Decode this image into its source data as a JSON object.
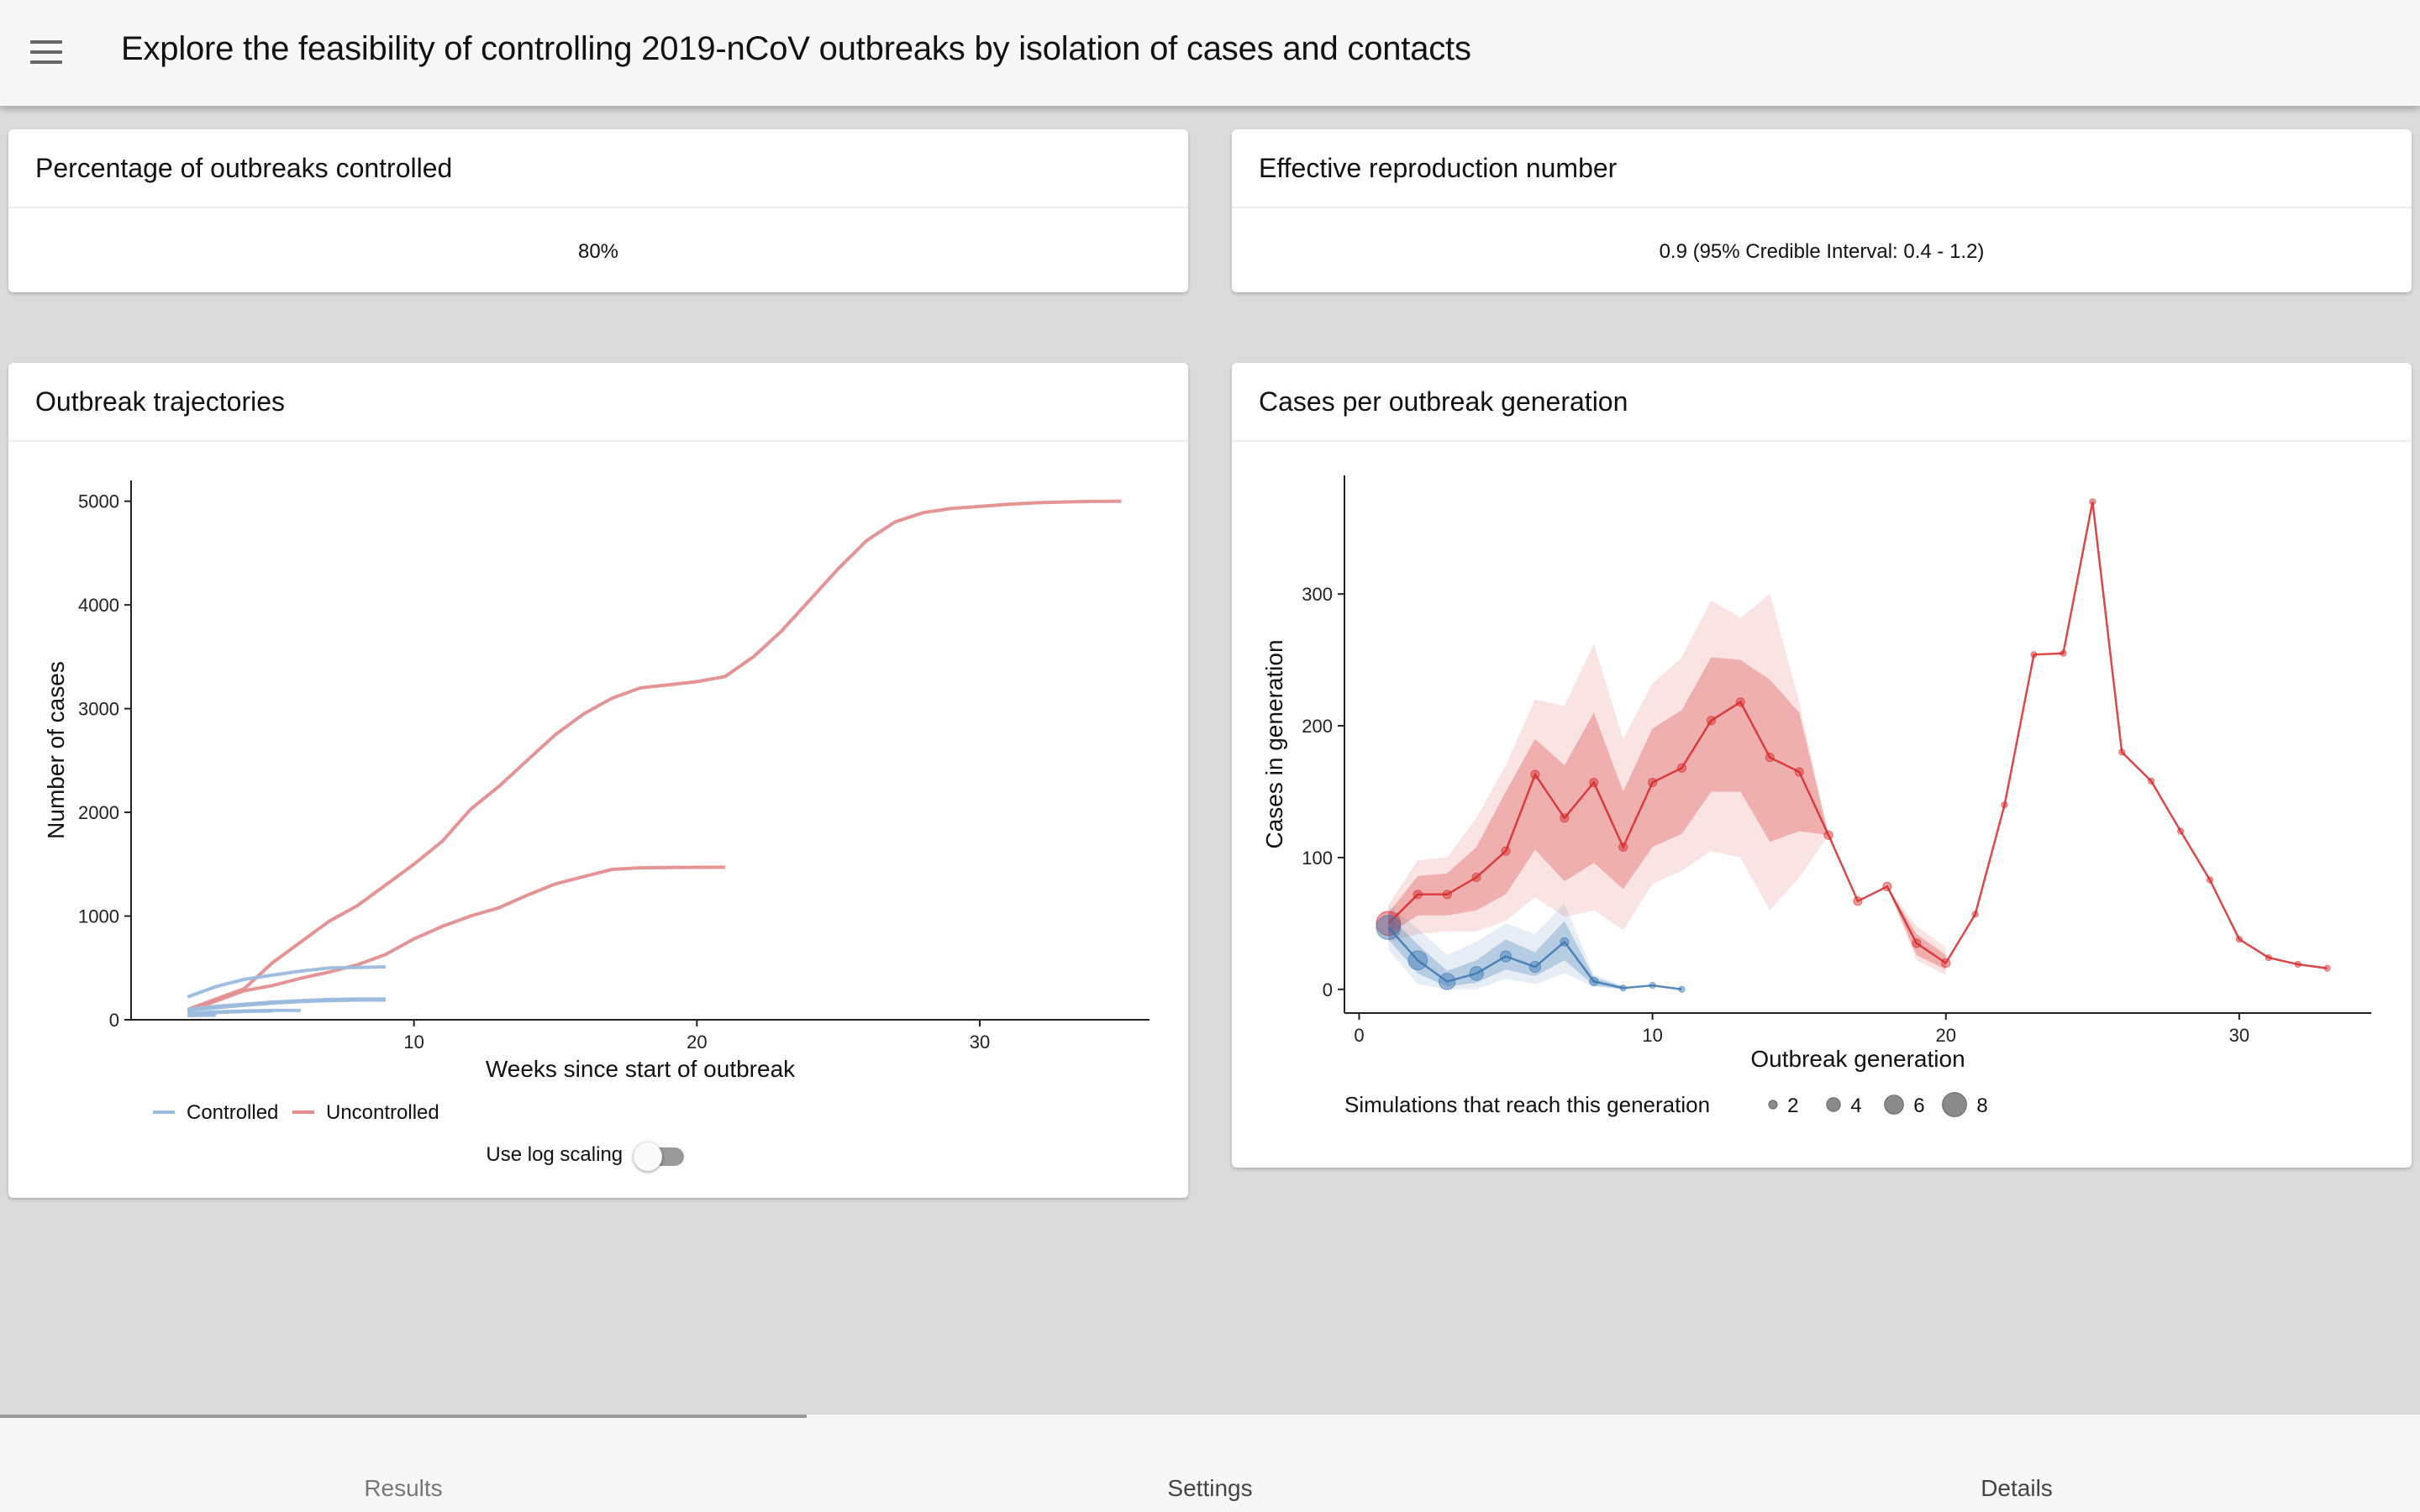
{
  "app": {
    "title": "Explore the feasibility of controlling 2019-nCoV outbreaks by isolation of cases and contacts",
    "menu_icon": "hamburger-menu-icon"
  },
  "cards": {
    "controlled": {
      "title": "Percentage of outbreaks controlled",
      "value": "80%"
    },
    "reproduction": {
      "title": "Effective reproduction number",
      "value": "0.9 (95% Credible Interval: 0.4 - 1.2)"
    },
    "trajectories": {
      "title": "Outbreak trajectories",
      "toggle_label": "Use log scaling",
      "toggle_on": false
    },
    "generation": {
      "title": "Cases per outbreak generation"
    }
  },
  "colors": {
    "controlled": "#6e9bc8",
    "uncontrolled": "#e27c7c",
    "gen_red": "#d62728",
    "gen_blue": "#3a76b2"
  },
  "chart_data": [
    {
      "type": "line",
      "name": "outbreak-trajectories",
      "xlabel": "Weeks since start of outbreak",
      "ylabel": "Number of cases",
      "xlim": [
        0,
        36
      ],
      "ylim": [
        0,
        5200
      ],
      "xticks": [
        10,
        20,
        30
      ],
      "yticks": [
        0,
        1000,
        2000,
        3000,
        4000,
        5000
      ],
      "legend": [
        {
          "label": "Controlled",
          "color": "#9bbbdd"
        },
        {
          "label": "Uncontrolled",
          "color": "#e38e8e"
        }
      ],
      "series": [
        {
          "name": "Uncontrolled",
          "group": "uncontrolled",
          "x": [
            2,
            4,
            5,
            6,
            7,
            8,
            9,
            10,
            11,
            12,
            13,
            14,
            15,
            16,
            17,
            18,
            19,
            20,
            21,
            22,
            23,
            24,
            25,
            26,
            27,
            28,
            29,
            30,
            31,
            32,
            33,
            34,
            35
          ],
          "y": [
            100,
            300,
            550,
            750,
            950,
            1100,
            1300,
            1500,
            1720,
            2030,
            2250,
            2500,
            2750,
            2950,
            3100,
            3200,
            3230,
            3260,
            3310,
            3500,
            3750,
            4050,
            4350,
            4620,
            4800,
            4890,
            4930,
            4950,
            4970,
            4985,
            4993,
            4998,
            5000
          ]
        },
        {
          "name": "Uncontrolled",
          "group": "uncontrolled",
          "x": [
            2,
            3,
            4,
            5,
            6,
            7,
            8,
            9,
            10,
            11,
            12,
            13,
            14,
            15,
            16,
            17,
            18,
            19,
            20,
            21
          ],
          "y": [
            80,
            180,
            280,
            330,
            400,
            460,
            530,
            630,
            780,
            900,
            1000,
            1080,
            1200,
            1310,
            1380,
            1450,
            1465,
            1468,
            1470,
            1470
          ]
        },
        {
          "name": "Controlled",
          "group": "controlled",
          "x": [
            2,
            3,
            4,
            5,
            6,
            7,
            8,
            9
          ],
          "y": [
            220,
            320,
            390,
            430,
            470,
            500,
            505,
            510
          ]
        },
        {
          "name": "Controlled",
          "group": "controlled",
          "x": [
            2,
            3,
            4,
            5,
            6,
            7,
            8,
            9
          ],
          "y": [
            100,
            130,
            150,
            170,
            185,
            195,
            200,
            200
          ]
        },
        {
          "name": "Controlled",
          "group": "controlled",
          "x": [
            2,
            3,
            4,
            5,
            6,
            7,
            8,
            9
          ],
          "y": [
            90,
            115,
            140,
            160,
            175,
            185,
            190,
            190
          ]
        },
        {
          "name": "Controlled",
          "group": "controlled",
          "x": [
            2,
            3,
            4,
            5,
            6
          ],
          "y": [
            60,
            75,
            85,
            90,
            90
          ]
        },
        {
          "name": "Controlled",
          "group": "controlled",
          "x": [
            2,
            3,
            4,
            5
          ],
          "y": [
            55,
            70,
            80,
            85
          ]
        },
        {
          "name": "Controlled",
          "group": "controlled",
          "x": [
            2,
            3
          ],
          "y": [
            40,
            45
          ]
        }
      ]
    },
    {
      "type": "line",
      "name": "cases-per-generation",
      "xlabel": "Outbreak generation",
      "ylabel": "Cases in generation",
      "xlim": [
        -0.5,
        34.5
      ],
      "ylim": [
        -18,
        390
      ],
      "xticks": [
        0,
        10,
        20,
        30
      ],
      "yticks": [
        0,
        100,
        200,
        300
      ],
      "size_legend": {
        "title": "Simulations that reach this generation",
        "values": [
          2,
          4,
          6,
          8
        ]
      },
      "series": [
        {
          "name": "Uncontrolled",
          "color": "#d62728",
          "x": [
            1,
            2,
            3,
            4,
            5,
            6,
            7,
            8,
            9,
            10,
            11,
            12,
            13,
            14,
            15,
            16,
            17,
            18,
            19,
            20,
            21,
            22,
            23,
            24,
            25,
            26,
            27,
            28,
            29,
            30,
            31,
            32,
            33
          ],
          "y": [
            50,
            72,
            72,
            85,
            105,
            163,
            130,
            157,
            108,
            157,
            168,
            204,
            218,
            176,
            165,
            117,
            67,
            78,
            35,
            20,
            57,
            140,
            254,
            255,
            370,
            180,
            158,
            120,
            83,
            38,
            24,
            19,
            16
          ],
          "n": [
            8,
            2,
            2,
            2,
            2,
            2,
            2,
            2,
            2,
            2,
            2,
            2,
            2,
            2,
            2,
            2,
            2,
            2,
            2,
            2,
            1,
            1,
            1,
            1,
            1,
            1,
            1,
            1,
            1,
            1,
            1,
            1,
            1
          ],
          "band_inner_low": [
            42,
            56,
            56,
            60,
            72,
            106,
            82,
            96,
            76,
            108,
            118,
            150,
            150,
            112,
            120,
            117,
            67,
            78,
            26,
            15
          ],
          "band_inner_high": [
            58,
            86,
            88,
            108,
            150,
            190,
            170,
            210,
            150,
            198,
            212,
            252,
            250,
            235,
            210,
            117,
            67,
            78,
            42,
            26
          ],
          "band_outer_low": [
            36,
            42,
            44,
            44,
            52,
            70,
            55,
            60,
            45,
            80,
            90,
            105,
            100,
            60,
            85,
            117,
            67,
            78,
            22,
            11
          ],
          "band_outer_high": [
            64,
            98,
            100,
            130,
            170,
            220,
            215,
            262,
            190,
            232,
            252,
            295,
            282,
            300,
            218,
            117,
            67,
            78,
            48,
            32
          ]
        },
        {
          "name": "Controlled",
          "color": "#3a76b2",
          "x": [
            1,
            2,
            3,
            4,
            5,
            6,
            7,
            8,
            9,
            10,
            11
          ],
          "y": [
            47,
            22,
            6,
            12,
            25,
            17,
            36,
            6,
            1,
            3,
            0
          ],
          "n": [
            8,
            6,
            5,
            4,
            3,
            3,
            2,
            2,
            1,
            1,
            1
          ],
          "band_inner_low": [
            38,
            12,
            2,
            5,
            15,
            10,
            22,
            3,
            0
          ],
          "band_inner_high": [
            56,
            34,
            14,
            22,
            38,
            28,
            52,
            9,
            2
          ],
          "band_outer_low": [
            30,
            4,
            0,
            0,
            8,
            4,
            12,
            2,
            0
          ],
          "band_outer_high": [
            64,
            46,
            26,
            36,
            50,
            42,
            65,
            11,
            3
          ]
        }
      ]
    }
  ],
  "nav": {
    "tabs": [
      "Results",
      "Settings",
      "Details"
    ],
    "active": 0
  }
}
